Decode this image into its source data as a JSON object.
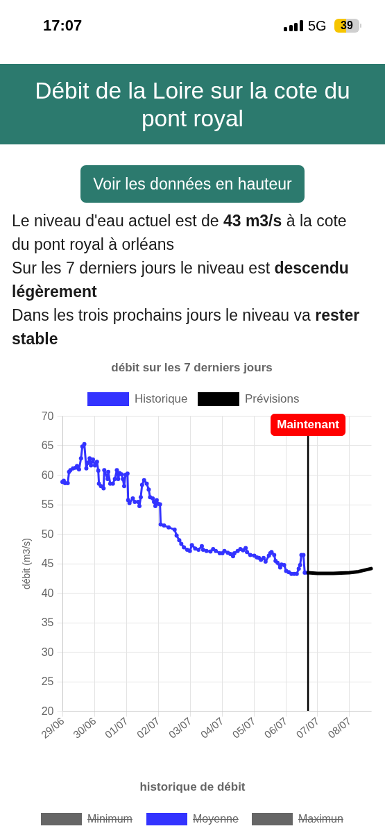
{
  "chart_data": [
    {
      "type": "line",
      "title": "débit sur les 7 derniers jours",
      "ylabel": "débit (m3/s)",
      "annotations": [
        "17:07",
        "5G",
        "39",
        "Débit de la Loire sur la cote du pont royal",
        "Voir les données en hauteur",
        "Le niveau d'eau actuel est de",
        "43 m3/s",
        "à la cote",
        "du pont royal à orléans",
        "Sur les 7 derniers jours le niveau est",
        "descendu",
        "légèrement",
        "Dans les trois prochains jours le niveau va",
        "rester",
        "stable"
      ],
      "series": [
        {
          "name": "Historique",
          "color": "#3333ff",
          "marker": "circle",
          "x": [
            "--06-29T00:00",
            "--06-29T01:00",
            "--06-29T02:00",
            "--06-29T04:00",
            "--06-29T05:00",
            "--06-29T06:00",
            "--06-29T08:00",
            "--06-29T10:00",
            "--06-29T11:00",
            "--06-29T12:30",
            "--06-29T14:00",
            "--06-29T15:00",
            "--06-29T16:30",
            "--06-29T18:00",
            "--06-29T19:00",
            "--06-29T20:30",
            "--06-29T21:30",
            "--06-29T23:00",
            "--06-30T00:30",
            "--06-30T02:00",
            "--06-30T03:00",
            "--06-30T03:30",
            "--06-30T05:00",
            "--06-30T07:00",
            "--06-30T07:30",
            "--06-30T10:00",
            "--06-30T10:30",
            "--06-30T12:00",
            "--06-30T14:00",
            "--06-30T15:30",
            "--06-30T17:00",
            "--06-30T18:00",
            "--06-30T19:00",
            "--06-30T20:30",
            "--06-30T21:30",
            "--06-30T22:30",
            "--06-30T23:30",
            "--07-01T01:00",
            "--07-01T01:30",
            "--07-01T02:30",
            "--07-01T05:00",
            "--07-01T06:30",
            "--07-01T09:00",
            "--07-01T10:00",
            "--07-01T11:00",
            "--07-01T12:00",
            "--07-01T13:30",
            "--07-01T15:30",
            "--07-01T17:00",
            "--07-01T18:00",
            "--07-01T20:00",
            "--07-01T21:00",
            "--07-01T22:00",
            "--07-01T23:00",
            "--07-02T00:00",
            "--07-02T01:30",
            "--07-02T02:00",
            "--07-02T04:30",
            "--07-02T08:00",
            "--07-02T12:30",
            "--07-02T14:00",
            "--07-02T16:00",
            "--07-02T17:30",
            "--07-02T19:30",
            "--07-02T22:00",
            "--07-03T00:00",
            "--07-03T01:30",
            "--07-03T04:00",
            "--07-03T06:30",
            "--07-03T09:00",
            "--07-03T10:00",
            "--07-03T12:30",
            "--07-03T15:30",
            "--07-03T17:30",
            "--07-03T19:30",
            "--07-03T22:30",
            "--07-04T00:30",
            "--07-04T02:00",
            "--07-04T04:30",
            "--07-04T06:30",
            "--07-04T08:30",
            "--07-04T09:30",
            "--07-04T12:00",
            "--07-04T14:00",
            "--07-04T16:00",
            "--07-04T18:00",
            "--07-04T19:00",
            "--07-04T21:30",
            "--07-05T00:30",
            "--07-05T02:30",
            "--07-05T04:00",
            "--07-05T05:30",
            "--07-05T07:30",
            "--07-05T09:00",
            "--07-05T11:30",
            "--07-05T12:30",
            "--07-05T13:30",
            "--07-05T15:30",
            "--07-05T16:30",
            "--07-05T18:00",
            "--07-05T20:00",
            "--07-05T21:00",
            "--07-05T23:00",
            "--07-06T00:30",
            "--07-06T02:30",
            "--07-06T04:30",
            "--07-06T06:30",
            "--07-06T08:30",
            "--07-06T10:00",
            "--07-06T11:00",
            "--07-06T12:00",
            "--07-06T13:30",
            "--07-06T14:30",
            "--07-06T16:30"
          ],
          "values": [
            58.8,
            59.0,
            58.6,
            58.6,
            60.5,
            60.8,
            61.1,
            61.2,
            61.5,
            60.9,
            62.8,
            64.8,
            65.2,
            61.1,
            62.0,
            62.8,
            61.6,
            62.6,
            61.6,
            62.2,
            60.7,
            58.5,
            58.1,
            57.7,
            60.8,
            59.3,
            60.5,
            58.5,
            58.5,
            59.3,
            60.8,
            59.3,
            60.3,
            60.1,
            59.3,
            58.1,
            60.0,
            60.2,
            55.7,
            55.2,
            56.0,
            55.4,
            55.4,
            54.7,
            56.2,
            58.3,
            59.1,
            58.5,
            57.5,
            56.2,
            56.0,
            55.4,
            54.7,
            55.7,
            55.1,
            55.0,
            51.6,
            51.4,
            51.1,
            50.7,
            49.7,
            48.9,
            48.3,
            47.7,
            47.3,
            47.1,
            48.1,
            47.5,
            47.3,
            47.9,
            47.3,
            47.1,
            47.0,
            47.4,
            47.1,
            46.7,
            46.7,
            47.1,
            46.8,
            46.6,
            46.2,
            46.7,
            47.1,
            47.4,
            47.2,
            47.6,
            46.9,
            46.4,
            46.3,
            46.0,
            45.9,
            45.6,
            45.9,
            45.3,
            46.3,
            46.7,
            46.9,
            46.4,
            45.4,
            45.1,
            44.3,
            44.8,
            44.7,
            43.7,
            43.5,
            43.2,
            43.2,
            43.2,
            44.1,
            44.7,
            46.4,
            46.4,
            43.4,
            43.4
          ]
        },
        {
          "name": "Prévisions",
          "color": "#000000",
          "marker": "none",
          "x": [
            "--07-06T17:00",
            "--07-07T00:00",
            "--07-07T12:00",
            "--07-08T00:00",
            "--07-08T07:00",
            "--07-08T16:30"
          ],
          "values": [
            43.4,
            43.3,
            43.3,
            43.4,
            43.6,
            44.1
          ]
        }
      ],
      "xlim": [
        "--06-29T00:00",
        "--07-08T16:30"
      ],
      "xticks": [
        {
          "value": "--06-29",
          "label": "29/06"
        },
        {
          "value": "--06-30",
          "label": "30/06"
        },
        {
          "value": "--07-01",
          "label": "01/07"
        },
        {
          "value": "--07-02",
          "label": "02/07"
        },
        {
          "value": "--07-03",
          "label": "03/07"
        },
        {
          "value": "--07-04",
          "label": "04/07"
        },
        {
          "value": "--07-05",
          "label": "05/07"
        },
        {
          "value": "--07-06",
          "label": "06/07"
        },
        {
          "value": "--07-07",
          "label": "07/07"
        },
        {
          "value": "--07-08",
          "label": "08/07"
        }
      ],
      "ylim": [
        20,
        70
      ],
      "yticks": [
        20,
        25,
        30,
        35,
        40,
        45,
        50,
        55,
        60,
        65,
        70
      ],
      "grid": true,
      "legend": "top",
      "ref_lines": [
        {
          "axis": "x",
          "value": "--07-06T17:00",
          "label": "Maintenant",
          "color": "#000000"
        }
      ]
    },
    {
      "type": "other",
      "title": "historique de débit",
      "annotations": [
        "Minimum",
        "Moyenne",
        "Maximun"
      ]
    }
  ]
}
